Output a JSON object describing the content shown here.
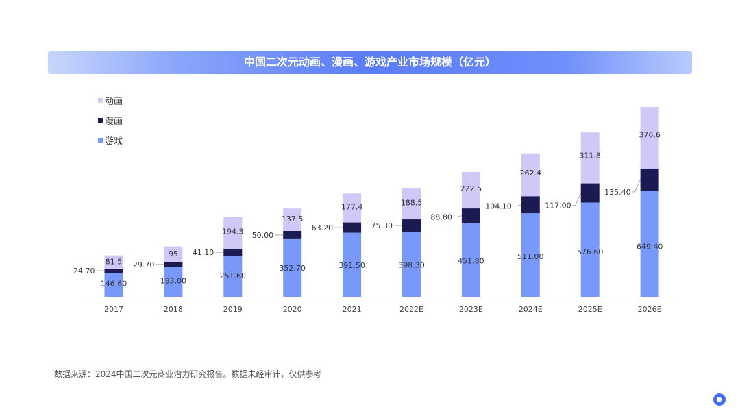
{
  "title": "中国二次元动画、漫画、游戏产业市场规模（亿元）",
  "source": "数据来源：2024中国二次元商业潜力研究报告。数据未经审计，仅供参考",
  "chart_data": {
    "type": "bar",
    "stacked": true,
    "title": "中国二次元动画、漫画、游戏产业市场规模（亿元）",
    "categories": [
      "2017",
      "2018",
      "2019",
      "2020",
      "2021",
      "2022E",
      "2023E",
      "2024E",
      "2025E",
      "2026E"
    ],
    "series": [
      {
        "name": "游戏",
        "color": "#7899f9",
        "values": [
          146.6,
          183.0,
          251.6,
          352.7,
          391.5,
          398.3,
          451.8,
          511.0,
          576.6,
          649.4
        ],
        "labels": [
          "146.60",
          "183.00",
          "251.60",
          "352.70",
          "391.50",
          "398.30",
          "451.80",
          "511.00",
          "576.60",
          "649.40"
        ]
      },
      {
        "name": "漫画",
        "color": "#1c1a52",
        "values": [
          24.7,
          29.7,
          41.1,
          50.0,
          63.2,
          75.3,
          88.8,
          104.1,
          117.0,
          135.4
        ],
        "labels": [
          "24.70",
          "29.70",
          "41.10",
          "50.00",
          "63.20",
          "75.30",
          "88.80",
          "104.10",
          "117.00",
          "135.40"
        ]
      },
      {
        "name": "动画",
        "color": "#d0c8f7",
        "values": [
          81.5,
          95,
          194.3,
          137.5,
          177.4,
          188.5,
          222.5,
          262.4,
          311.8,
          376.6
        ],
        "labels": [
          "81.5",
          "95",
          "194.3",
          "137.5",
          "177.4",
          "188.5",
          "222.5",
          "262.4",
          "311.8",
          "376.6"
        ]
      }
    ],
    "legend": {
      "placement": "top-left",
      "order": [
        "动画",
        "漫画",
        "游戏"
      ]
    },
    "grid": false,
    "ylim": [
      0,
      1161.4
    ]
  }
}
